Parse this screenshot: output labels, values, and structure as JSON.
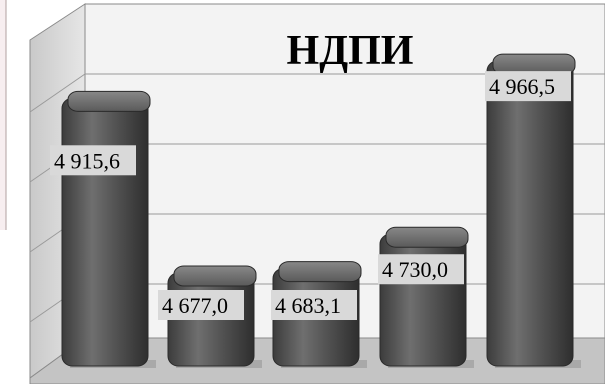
{
  "chart_data": {
    "type": "bar",
    "title": "НДПИ",
    "categories": [
      "",
      "",
      "",
      "",
      ""
    ],
    "values": [
      4915.6,
      4677.0,
      4683.1,
      4730.0,
      4966.5
    ],
    "data_labels": [
      "4 915,6",
      "4 677,0",
      "4 683,1",
      "4 730,0",
      "4 966,5"
    ],
    "xlabel": "",
    "ylabel": "",
    "ylim": [
      4550,
      5050
    ],
    "grid": true,
    "legend": "none",
    "style": "3d-cylinder-bars"
  },
  "colors": {
    "bar": "#4f4f4f",
    "bar_highlight": "#7a7a7a",
    "wall": "#f3f3f3",
    "side_wall": "#dcdcdc",
    "floor": "#c4c4c4",
    "grid": "#9a9a9a",
    "label_bg": "#d9d9d9"
  }
}
